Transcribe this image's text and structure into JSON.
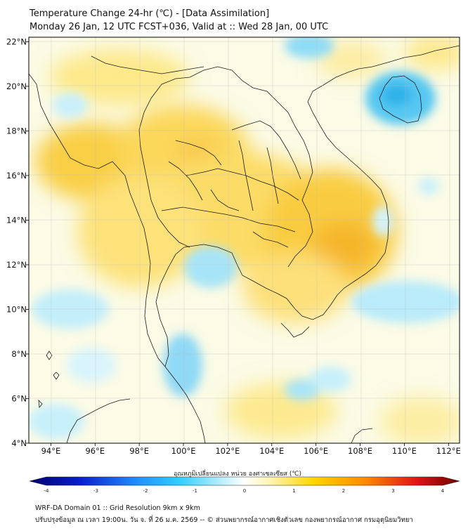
{
  "header": {
    "title_line1": "Temperature Change 24-hr (℃) - [Data Assimilation]",
    "title_line2": "Monday 26 Jan, 12 UTC FCST+036, Valid at :: Wed 28 Jan, 00 UTC"
  },
  "map": {
    "lon_labels": [
      "94°E",
      "96°E",
      "98°E",
      "100°E",
      "102°E",
      "104°E",
      "106°E",
      "108°E",
      "110°E",
      "112°E"
    ],
    "lat_labels": [
      "22°N",
      "20°N",
      "18°N",
      "16°N",
      "14°N",
      "12°N",
      "10°N",
      "8°N",
      "6°N",
      "4°N"
    ],
    "lon_range": [
      93,
      112.5
    ],
    "lat_range": [
      4,
      22.2
    ],
    "background_color": "#fbfbe6",
    "warm_color": "#f5c400",
    "cool_color": "#39c4f0"
  },
  "colorbar": {
    "label": "อุณหภูมิเปลี่ยนแปลง หน่วย องศาเซลเซียส (℃)",
    "ticks": [
      "-4",
      "-3",
      "-2",
      "-1",
      "0",
      "1",
      "2",
      "3",
      "4"
    ],
    "range": [
      -4,
      4
    ]
  },
  "footer": {
    "line1": "WRF-DA Domain 01 :: Grid Resolution 9km x 9km",
    "line2": "ปรับปรุงข้อมูล ณ เวลา 19:00น. วัน จ. ที่ 26 ม.ค. 2569 -- © ส่วนพยากรณ์อากาศเชิงตัวเลข กองพยากรณ์อากาศ กรมอุตุนิยมวิทยา"
  }
}
